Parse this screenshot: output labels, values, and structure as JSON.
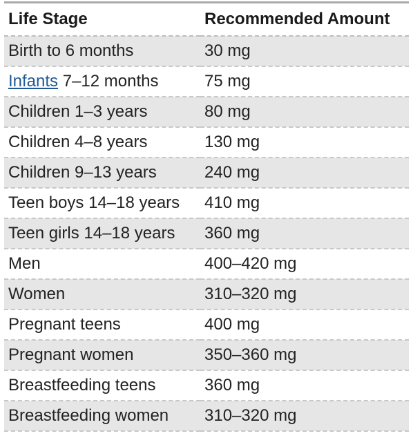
{
  "table": {
    "headers": [
      "Life Stage",
      "Recommended Amount"
    ],
    "rows": [
      {
        "link": "",
        "stage": "Birth to 6 months",
        "amount": "30 mg"
      },
      {
        "link": "Infants",
        "stage": " 7–12 months",
        "amount": "75 mg"
      },
      {
        "link": "",
        "stage": "Children 1–3 years",
        "amount": "80 mg"
      },
      {
        "link": "",
        "stage": "Children 4–8 years",
        "amount": "130 mg"
      },
      {
        "link": "",
        "stage": "Children 9–13 years",
        "amount": "240 mg"
      },
      {
        "link": "",
        "stage": "Teen boys 14–18 years",
        "amount": "410 mg"
      },
      {
        "link": "",
        "stage": "Teen girls 14–18 years",
        "amount": "360 mg"
      },
      {
        "link": "",
        "stage": "Men",
        "amount": "400–420 mg"
      },
      {
        "link": "",
        "stage": "Women",
        "amount": "310–320 mg"
      },
      {
        "link": "",
        "stage": "Pregnant teens",
        "amount": "400 mg"
      },
      {
        "link": "",
        "stage": "Pregnant women",
        "amount": "350–360 mg"
      },
      {
        "link": "",
        "stage": "Breastfeeding teens",
        "amount": "360 mg"
      },
      {
        "link": "",
        "stage": "Breastfeeding women",
        "amount": "310–320 mg"
      }
    ]
  },
  "colors": {
    "shaded_row": "#e6e6e6",
    "link": "#1f5a96",
    "rule": "#a9a9a9"
  }
}
